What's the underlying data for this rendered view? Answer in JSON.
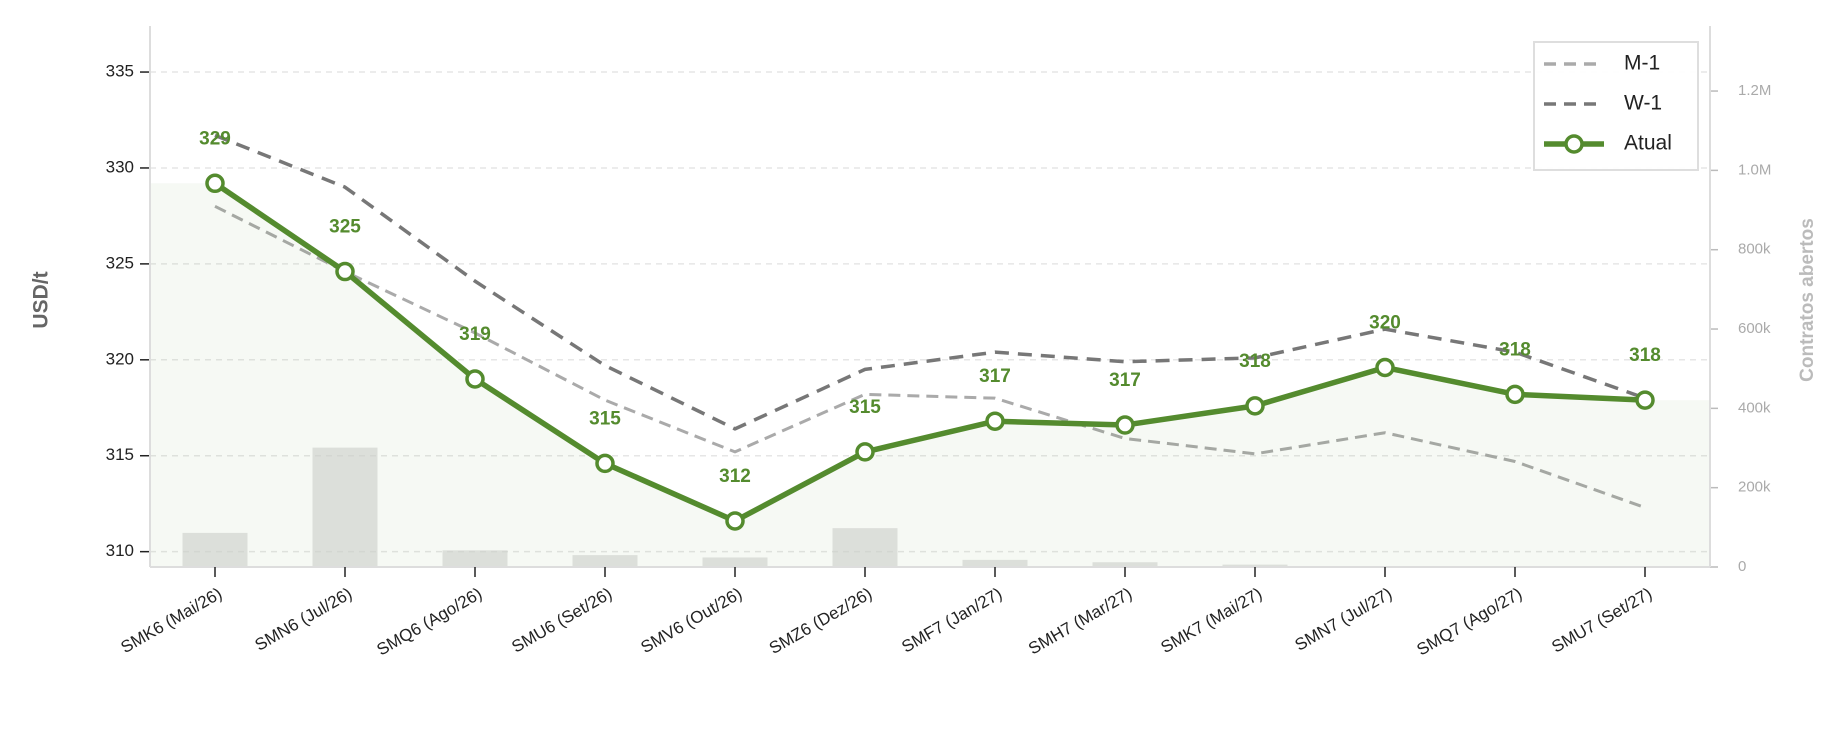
{
  "chart_data": {
    "type": "line",
    "ylabel": "USD/t",
    "y2label": "Contratos abertos",
    "categories": [
      "SMK6 (Mai/26)",
      "SMN6 (Jul/26)",
      "SMQ6 (Ago/26)",
      "SMU6 (Set/26)",
      "SMV6 (Out/26)",
      "SMZ6 (Dez/26)",
      "SMF7 (Jan/27)",
      "SMH7 (Mar/27)",
      "SMK7 (Mai/27)",
      "SMN7 (Jul/27)",
      "SMQ7 (Ago/27)",
      "SMU7 (Set/27)"
    ],
    "series": [
      {
        "name": "M-1",
        "color": "#aaaaaa",
        "linestyle": "dashed",
        "values": [
          328.0,
          324.6,
          321.4,
          317.9,
          315.2,
          318.2,
          318.0,
          315.9,
          315.1,
          316.2,
          314.7,
          312.3
        ]
      },
      {
        "name": "W-1",
        "color": "#777777",
        "linestyle": "dashed",
        "values": [
          331.7,
          329.0,
          324.1,
          319.7,
          316.4,
          319.5,
          320.4,
          319.9,
          320.1,
          321.6,
          320.4,
          318.0
        ]
      },
      {
        "name": "Atual",
        "color": "#548b2e",
        "linestyle": "solid",
        "marker": "circle",
        "fill_area": true,
        "values": [
          329.2,
          324.6,
          319.0,
          314.6,
          311.6,
          315.2,
          316.8,
          316.6,
          317.6,
          319.6,
          318.2,
          317.9
        ],
        "value_labels": [
          "329",
          "325",
          "319",
          "315",
          "312",
          "315",
          "317",
          "317",
          "318",
          "320",
          "318",
          "318"
        ]
      }
    ],
    "bars": {
      "axis": "y2",
      "color": "#d6d6d6",
      "values": [
        86000,
        301000,
        42000,
        30000,
        24000,
        98000,
        18000,
        12000,
        6000,
        2000,
        1000,
        1000
      ]
    },
    "ylim": [
      309.2,
      337.4
    ],
    "yticks": [
      310,
      315,
      320,
      325,
      330,
      335
    ],
    "y2lim": [
      0,
      1364000
    ],
    "y2ticks": [
      0,
      {
        "value": 200000,
        "label": "200k"
      },
      {
        "value": 400000,
        "label": "400k"
      },
      {
        "value": 600000,
        "label": "600k"
      },
      {
        "value": 800000,
        "label": "800k"
      },
      {
        "value": 1000000,
        "label": "1.0M"
      },
      {
        "value": 1200000,
        "label": "1.2M"
      }
    ],
    "grid": true,
    "legend": "upper right"
  }
}
